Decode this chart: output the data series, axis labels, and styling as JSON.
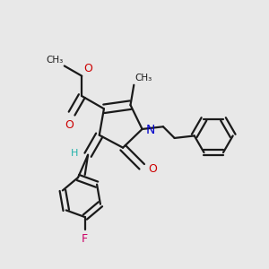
{
  "bg_color": "#e8e8e8",
  "bond_color": "#1a1a1a",
  "bond_width": 1.6,
  "figsize": [
    3.0,
    3.0
  ],
  "dpi": 100,
  "xlim": [
    0.0,
    1.0
  ],
  "ylim": [
    0.0,
    1.0
  ]
}
